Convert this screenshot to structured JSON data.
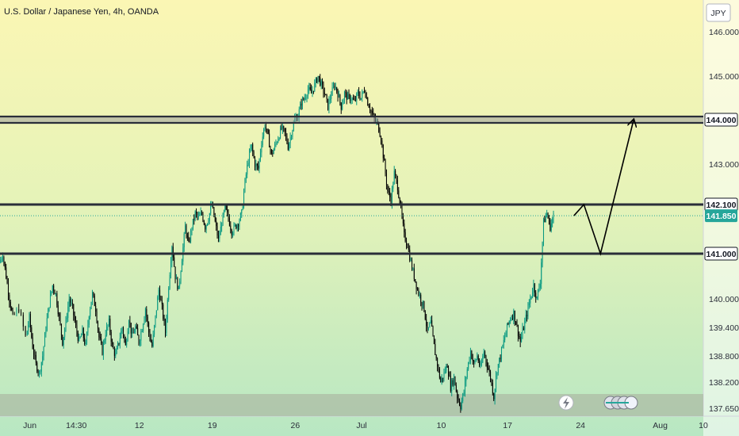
{
  "chart_data": {
    "type": "candlestick",
    "title": "U.S. Dollar / Japanese Yen, 4h, OANDA",
    "currency": "JPY",
    "y_ticks": [
      "146.000",
      "145.000",
      "143.000",
      "140.000",
      "139.400",
      "138.800",
      "138.200",
      "137.650"
    ],
    "x_ticks": [
      {
        "label": "Jun",
        "x": 0
      },
      {
        "label": "14:30",
        "x": 14
      },
      {
        "label": "12",
        "x": 33
      },
      {
        "label": "19",
        "x": 55
      },
      {
        "label": "26",
        "x": 80
      },
      {
        "label": "Jul",
        "x": 100
      },
      {
        "label": "10",
        "x": 124
      },
      {
        "label": "17",
        "x": 144
      },
      {
        "label": "24",
        "x": 166
      },
      {
        "label": "Aug",
        "x": 190
      },
      {
        "label": "10",
        "x": 203
      }
    ],
    "x_range": [
      -9,
      203
    ],
    "y_range": [
      137.55,
      146.45
    ],
    "levels": [
      {
        "value": 144.0,
        "label": "144.000",
        "style": "band"
      },
      {
        "value": 142.1,
        "label": "142.100",
        "style": "line"
      },
      {
        "value": 141.0,
        "label": "141.000",
        "style": "line"
      }
    ],
    "last_price": {
      "value": 141.85,
      "label": "141.850",
      "color": "#26a69a"
    },
    "bottom_zone": {
      "from": 137.55,
      "to": 137.95
    },
    "projection": [
      [
        164,
        141.85
      ],
      [
        167,
        142.1
      ],
      [
        172,
        141.0
      ],
      [
        182,
        144.0
      ]
    ],
    "price_path": [
      [
        -9,
        140.8
      ],
      [
        -8,
        141.0
      ],
      [
        -7,
        140.5
      ],
      [
        -6,
        140.0
      ],
      [
        -5,
        139.6
      ],
      [
        -3,
        139.8
      ],
      [
        -1,
        139.2
      ],
      [
        0,
        139.6
      ],
      [
        1,
        139.0
      ],
      [
        2,
        138.6
      ],
      [
        3,
        138.4
      ],
      [
        4,
        138.8
      ],
      [
        5,
        139.4
      ],
      [
        6,
        139.9
      ],
      [
        7,
        140.3
      ],
      [
        8,
        140.1
      ],
      [
        9,
        139.6
      ],
      [
        10,
        139.1
      ],
      [
        11,
        139.5
      ],
      [
        12,
        140.0
      ],
      [
        13,
        139.8
      ],
      [
        14,
        139.4
      ],
      [
        15,
        139.1
      ],
      [
        16,
        139.3
      ],
      [
        17,
        139.0
      ],
      [
        18,
        139.7
      ],
      [
        19,
        140.1
      ],
      [
        20,
        139.8
      ],
      [
        21,
        139.2
      ],
      [
        22,
        138.9
      ],
      [
        23,
        139.3
      ],
      [
        24,
        139.5
      ],
      [
        25,
        139.0
      ],
      [
        26,
        138.8
      ],
      [
        27,
        139.1
      ],
      [
        28,
        139.4
      ],
      [
        29,
        139.0
      ],
      [
        30,
        139.6
      ],
      [
        31,
        139.2
      ],
      [
        32,
        139.4
      ],
      [
        33,
        139.1
      ],
      [
        34,
        139.4
      ],
      [
        35,
        139.8
      ],
      [
        36,
        139.3
      ],
      [
        37,
        139.0
      ],
      [
        38,
        139.6
      ],
      [
        39,
        140.2
      ],
      [
        40,
        139.8
      ],
      [
        41,
        139.3
      ],
      [
        42,
        140.3
      ],
      [
        43,
        141.2
      ],
      [
        44,
        140.5
      ],
      [
        45,
        140.2
      ],
      [
        46,
        140.9
      ],
      [
        47,
        141.6
      ],
      [
        48,
        141.2
      ],
      [
        49,
        141.6
      ],
      [
        50,
        141.9
      ],
      [
        51,
        141.8
      ],
      [
        52,
        141.9
      ],
      [
        53,
        141.6
      ],
      [
        54,
        141.8
      ],
      [
        55,
        142.1
      ],
      [
        56,
        141.7
      ],
      [
        57,
        141.3
      ],
      [
        58,
        141.7
      ],
      [
        59,
        142.0
      ],
      [
        60,
        141.8
      ],
      [
        61,
        141.5
      ],
      [
        62,
        141.6
      ],
      [
        63,
        141.7
      ],
      [
        64,
        141.9
      ],
      [
        65,
        142.6
      ],
      [
        66,
        143.1
      ],
      [
        67,
        143.4
      ],
      [
        68,
        143.0
      ],
      [
        69,
        142.9
      ],
      [
        70,
        143.5
      ],
      [
        71,
        143.9
      ],
      [
        72,
        143.6
      ],
      [
        73,
        143.2
      ],
      [
        74,
        143.4
      ],
      [
        75,
        143.6
      ],
      [
        76,
        143.8
      ],
      [
        77,
        143.7
      ],
      [
        78,
        143.4
      ],
      [
        79,
        143.7
      ],
      [
        80,
        144.0
      ],
      [
        81,
        144.1
      ],
      [
        82,
        144.4
      ],
      [
        83,
        144.5
      ],
      [
        84,
        144.7
      ],
      [
        85,
        144.6
      ],
      [
        86,
        144.8
      ],
      [
        87,
        145.0
      ],
      [
        88,
        144.8
      ],
      [
        89,
        144.6
      ],
      [
        90,
        144.3
      ],
      [
        91,
        144.6
      ],
      [
        92,
        144.8
      ],
      [
        93,
        144.6
      ],
      [
        94,
        144.3
      ],
      [
        95,
        144.6
      ],
      [
        96,
        144.5
      ],
      [
        97,
        144.5
      ],
      [
        98,
        144.4
      ],
      [
        99,
        144.6
      ],
      [
        100,
        144.5
      ],
      [
        101,
        144.7
      ],
      [
        102,
        144.4
      ],
      [
        103,
        144.2
      ],
      [
        104,
        144.0
      ],
      [
        105,
        143.9
      ],
      [
        106,
        143.6
      ],
      [
        107,
        143.0
      ],
      [
        108,
        142.4
      ],
      [
        109,
        142.2
      ],
      [
        110,
        142.8
      ],
      [
        111,
        142.5
      ],
      [
        112,
        142.0
      ],
      [
        113,
        141.4
      ],
      [
        114,
        141.2
      ],
      [
        115,
        140.8
      ],
      [
        116,
        140.5
      ],
      [
        117,
        140.2
      ],
      [
        118,
        140.0
      ],
      [
        119,
        139.8
      ],
      [
        120,
        139.3
      ],
      [
        121,
        139.5
      ],
      [
        122,
        139.0
      ],
      [
        123,
        138.6
      ],
      [
        124,
        138.2
      ],
      [
        125,
        138.4
      ],
      [
        126,
        138.6
      ],
      [
        127,
        138.1
      ],
      [
        128,
        138.3
      ],
      [
        129,
        137.9
      ],
      [
        130,
        137.7
      ],
      [
        131,
        138.0
      ],
      [
        132,
        138.5
      ],
      [
        133,
        138.9
      ],
      [
        134,
        138.6
      ],
      [
        135,
        138.8
      ],
      [
        136,
        138.5
      ],
      [
        137,
        138.9
      ],
      [
        138,
        138.6
      ],
      [
        139,
        138.3
      ],
      [
        140,
        137.9
      ],
      [
        141,
        138.5
      ],
      [
        142,
        138.8
      ],
      [
        143,
        139.1
      ],
      [
        144,
        139.4
      ],
      [
        145,
        139.6
      ],
      [
        146,
        139.7
      ],
      [
        147,
        139.4
      ],
      [
        148,
        139.1
      ],
      [
        149,
        139.4
      ],
      [
        150,
        139.7
      ],
      [
        151,
        140.0
      ],
      [
        152,
        140.3
      ],
      [
        153,
        140.0
      ],
      [
        154,
        140.4
      ],
      [
        155,
        141.7
      ],
      [
        156,
        141.9
      ],
      [
        157,
        141.6
      ],
      [
        158,
        141.85
      ]
    ]
  }
}
